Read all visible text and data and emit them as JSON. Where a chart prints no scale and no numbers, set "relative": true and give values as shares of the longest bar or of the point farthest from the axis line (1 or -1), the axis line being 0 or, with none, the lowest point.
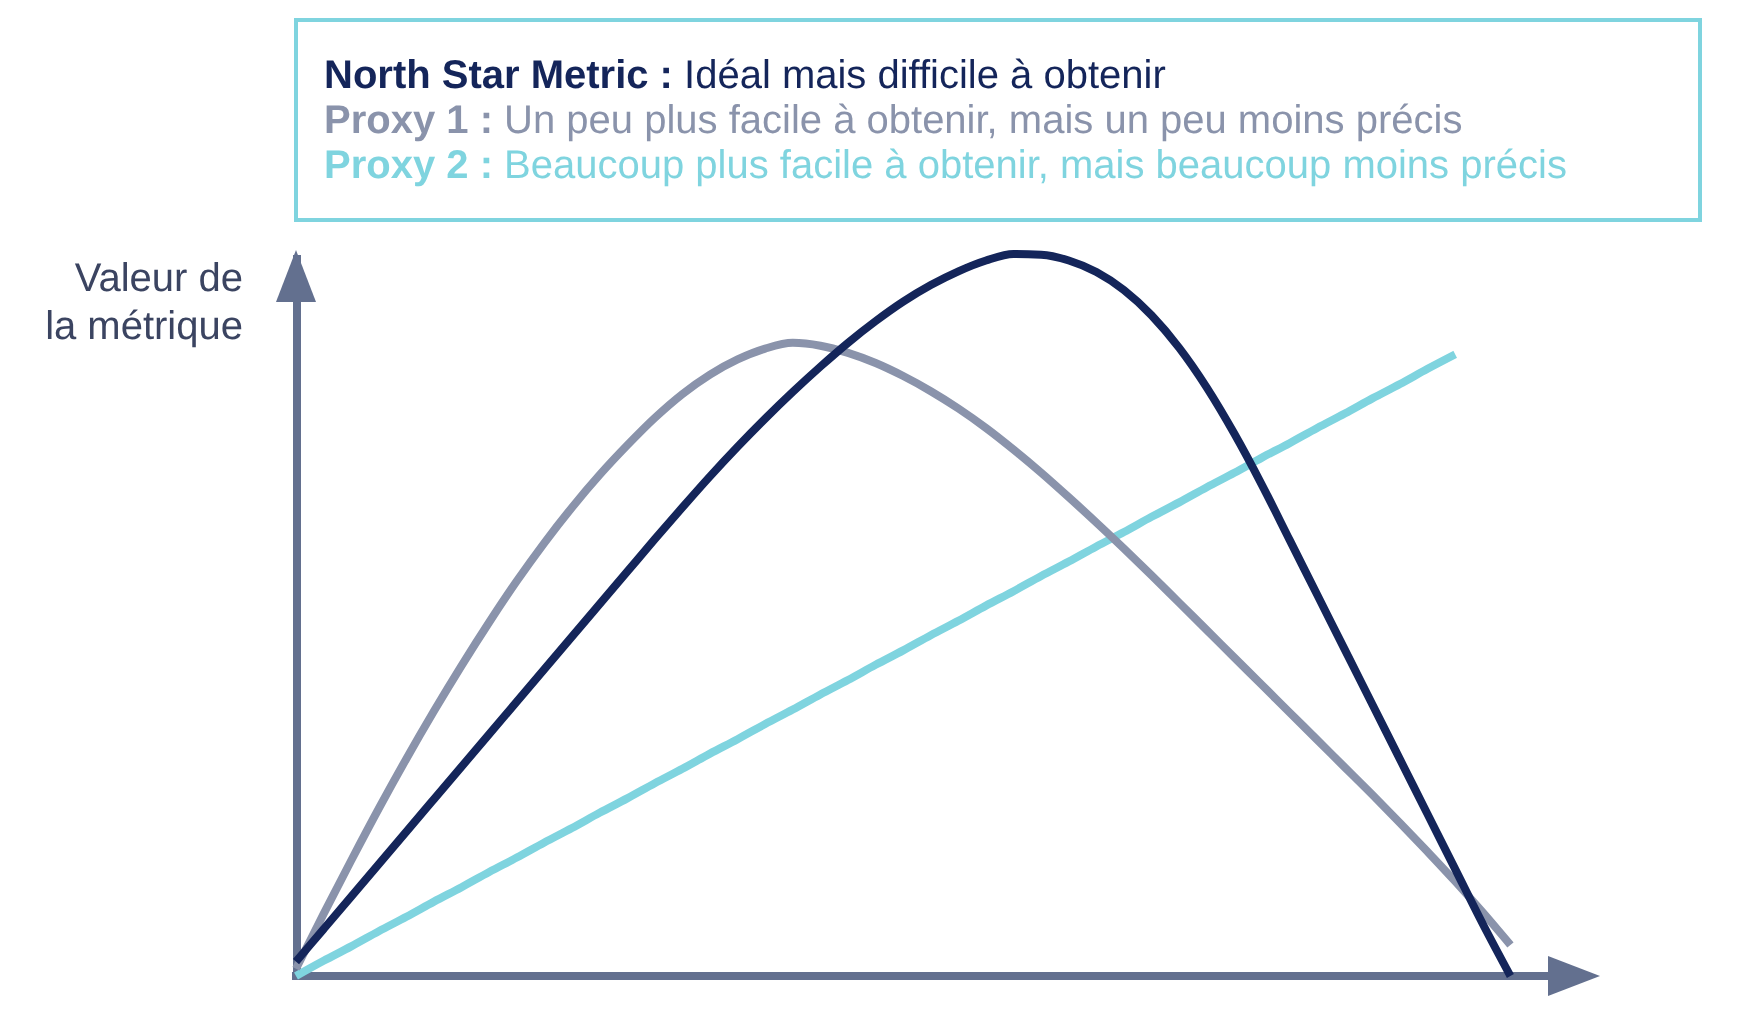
{
  "chart_data": {
    "type": "line",
    "relative": true,
    "legend": "top",
    "ylabel": "Valeur de\nla métrique",
    "categories": [
      null,
      null,
      null,
      null,
      null,
      null,
      null,
      null,
      null,
      null,
      null,
      null,
      null,
      null,
      null,
      null,
      null,
      null,
      null,
      null,
      null,
      null,
      null,
      null,
      null,
      null,
      null,
      null,
      null,
      null,
      null,
      null,
      null,
      null,
      null,
      null,
      null,
      null,
      null,
      null,
      null,
      null,
      null,
      null,
      null
    ],
    "series": [
      {
        "name": "North Star Metric :",
        "color": "#14255a",
        "values": [
          0.02,
          0.065,
          0.11,
          0.155,
          0.2,
          0.245,
          0.29,
          0.335,
          0.38,
          0.425,
          0.47,
          0.515,
          0.56,
          0.605,
          0.649,
          0.692,
          0.733,
          0.772,
          0.809,
          0.844,
          0.877,
          0.907,
          0.934,
          0.957,
          0.976,
          0.991,
          1.0,
          0.999,
          0.991,
          0.975,
          0.95,
          0.915,
          0.87,
          0.815,
          0.751,
          0.68,
          0.604,
          0.528,
          0.452,
          0.376,
          0.3,
          0.224,
          0.148,
          0.072,
          0.0
        ]
      },
      {
        "name": "Proxy 1 :",
        "color": "#8a93ab",
        "values": [
          0.01,
          0.086,
          0.16,
          0.232,
          0.301,
          0.367,
          0.43,
          0.49,
          0.547,
          0.6,
          0.649,
          0.694,
          0.735,
          0.773,
          0.806,
          0.833,
          0.854,
          0.869,
          0.877,
          0.873,
          0.863,
          0.849,
          0.831,
          0.81,
          0.786,
          0.759,
          0.729,
          0.697,
          0.663,
          0.628,
          0.592,
          0.555,
          0.517,
          0.479,
          0.441,
          0.403,
          0.365,
          0.327,
          0.289,
          0.251,
          0.212,
          0.172,
          0.131,
          0.088,
          0.043
        ]
      },
      {
        "name": "Proxy 2 :",
        "color": "#7fd4df",
        "values": [
          0.0,
          0.021,
          0.041,
          0.062,
          0.082,
          0.103,
          0.123,
          0.144,
          0.164,
          0.185,
          0.205,
          0.226,
          0.246,
          0.267,
          0.287,
          0.308,
          0.328,
          0.349,
          0.369,
          0.39,
          0.41,
          0.431,
          0.451,
          0.472,
          0.492,
          0.513,
          0.533,
          0.554,
          0.574,
          0.595,
          0.615,
          0.636,
          0.656,
          0.677,
          0.697,
          0.718,
          0.738,
          0.759,
          0.779,
          0.8,
          0.82,
          0.841,
          0.861,
          null,
          null
        ]
      }
    ],
    "annotations": [
      "Idéal mais difficile à obtenir",
      "Un peu plus facile à obtenir, mais un peu moins précis",
      "Beaucoup plus facile à obtenir, mais beaucoup moins précis"
    ]
  }
}
